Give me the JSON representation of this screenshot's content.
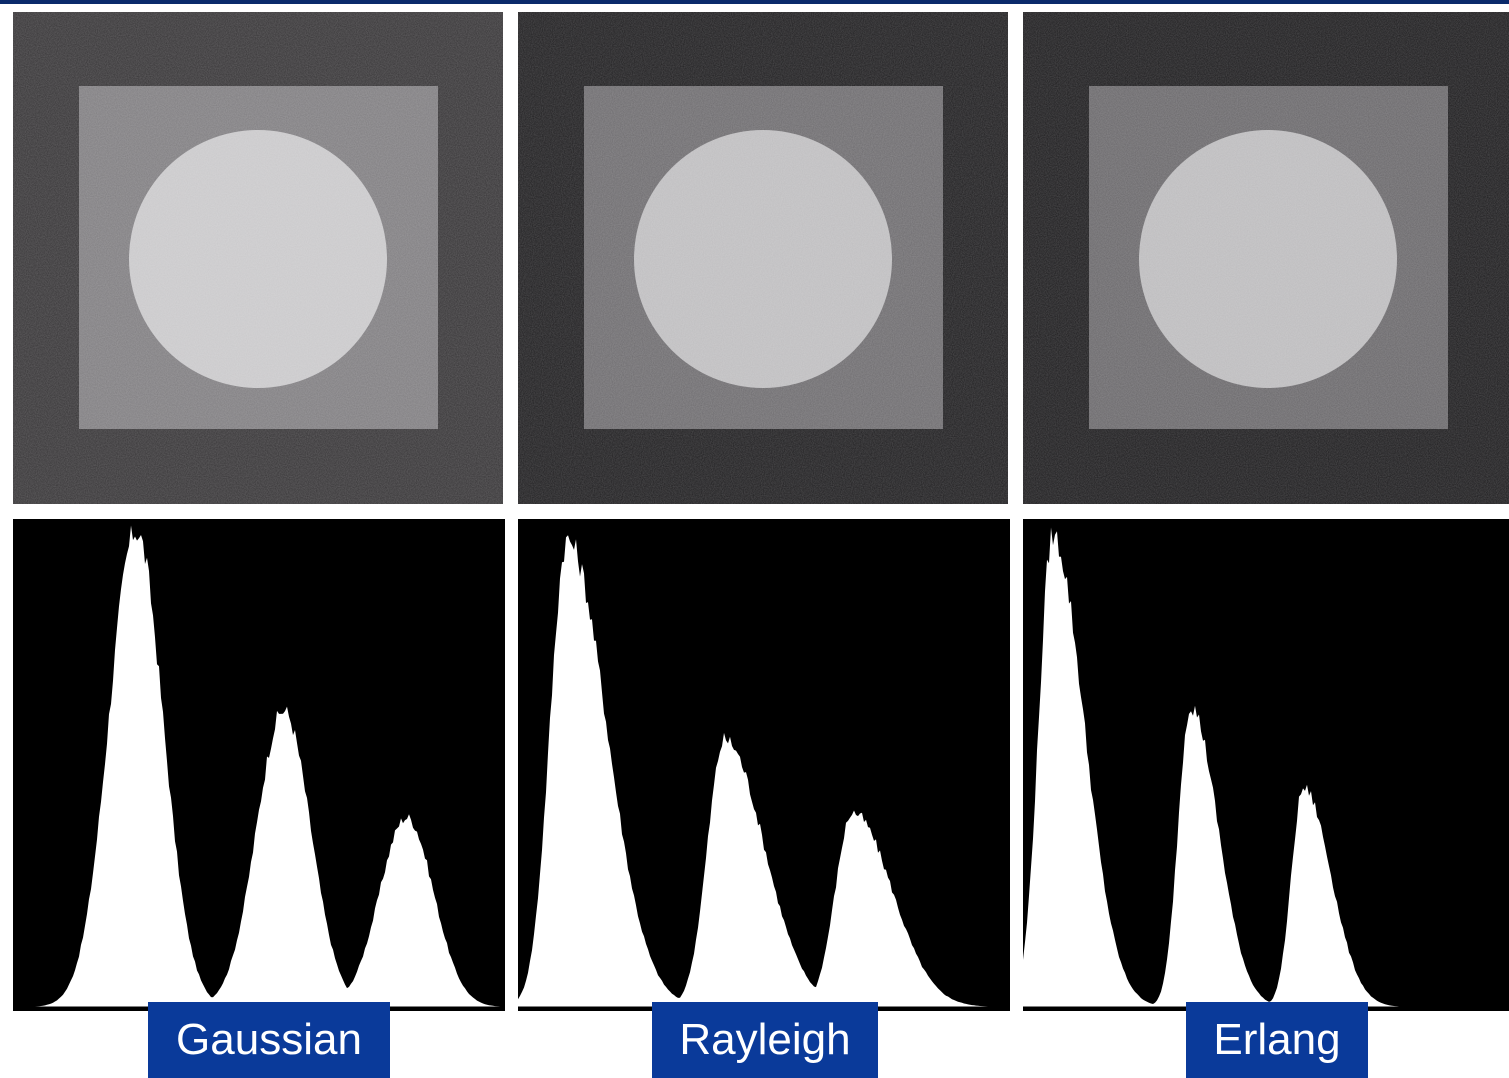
{
  "panels": [
    {
      "label": "Gaussian",
      "image": {
        "outer_gray": "#363436",
        "square_gray": "#7f7d80",
        "circle_gray": "#c9c8ca"
      },
      "histogram_peaks": [
        {
          "center": 0.25,
          "height": 0.98,
          "width": 0.055
        },
        {
          "center": 0.55,
          "height": 0.61,
          "width": 0.055
        },
        {
          "center": 0.8,
          "height": 0.39,
          "width": 0.055
        }
      ]
    },
    {
      "label": "Rayleigh",
      "image": {
        "outer_gray": "#1e1d1f",
        "square_gray": "#6d6b6e",
        "circle_gray": "#bebdbf"
      },
      "histogram_peaks": [
        {
          "center": 0.1,
          "height": 0.96,
          "width": 0.05,
          "skew": true
        },
        {
          "center": 0.42,
          "height": 0.55,
          "width": 0.05,
          "skew": true
        },
        {
          "center": 0.68,
          "height": 0.4,
          "width": 0.05,
          "skew": true
        }
      ]
    },
    {
      "label": "Erlang",
      "image": {
        "outer_gray": "#1c1b1d",
        "square_gray": "#69676a",
        "circle_gray": "#bcbbbd"
      },
      "histogram_peaks": [
        {
          "center": 0.06,
          "height": 0.97,
          "width": 0.04,
          "skew": true
        },
        {
          "center": 0.34,
          "height": 0.62,
          "width": 0.035,
          "skew": true
        },
        {
          "center": 0.57,
          "height": 0.45,
          "width": 0.035,
          "skew": true
        }
      ]
    }
  ],
  "colors": {
    "caption_bg": "#0a3a9a",
    "top_bar": "#0a2a6b"
  }
}
